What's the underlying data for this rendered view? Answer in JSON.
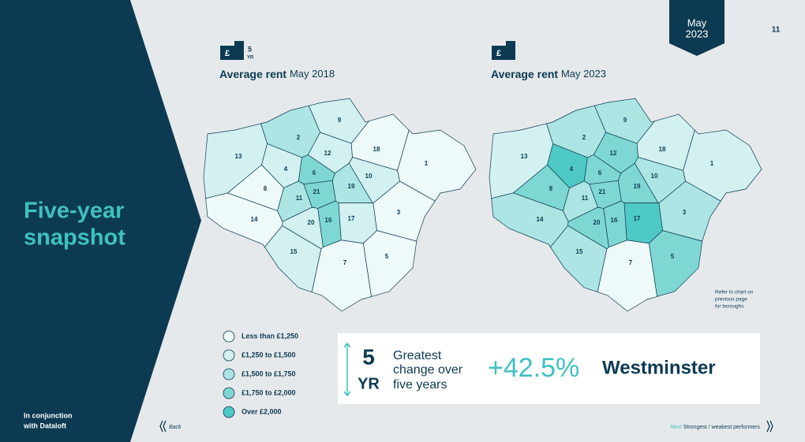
{
  "sidebar": {
    "title_lines": [
      "Five-year",
      "snapshot"
    ],
    "credit_lines": [
      "In conjunction",
      "with Dataloft"
    ]
  },
  "badge": {
    "month": "May",
    "year": "2023"
  },
  "page_number": "11",
  "maps": [
    {
      "icon_number": "5",
      "icon_unit": "YR",
      "title": "Average rent",
      "period": "May 2018",
      "boroughs": [
        {
          "label": "1",
          "level": 0
        },
        {
          "label": "2",
          "level": 2
        },
        {
          "label": "3",
          "level": 0
        },
        {
          "label": "4",
          "level": 1
        },
        {
          "label": "5",
          "level": 0
        },
        {
          "label": "6",
          "level": 3
        },
        {
          "label": "7",
          "level": 0
        },
        {
          "label": "8",
          "level": 0
        },
        {
          "label": "9",
          "level": 1
        },
        {
          "label": "10",
          "level": 1
        },
        {
          "label": "11",
          "level": 2
        },
        {
          "label": "12",
          "level": 1
        },
        {
          "label": "13",
          "level": 1
        },
        {
          "label": "14",
          "level": 0
        },
        {
          "label": "15",
          "level": 1
        },
        {
          "label": "16",
          "level": 3
        },
        {
          "label": "17",
          "level": 1
        },
        {
          "label": "18",
          "level": 0
        },
        {
          "label": "19",
          "level": 2
        },
        {
          "label": "20",
          "level": 1
        },
        {
          "label": "21",
          "level": 3
        }
      ]
    },
    {
      "title": "Average rent",
      "period": "May 2023",
      "boroughs": [
        {
          "label": "1",
          "level": 1
        },
        {
          "label": "2",
          "level": 2
        },
        {
          "label": "3",
          "level": 2
        },
        {
          "label": "4",
          "level": 4
        },
        {
          "label": "5",
          "level": 3
        },
        {
          "label": "6",
          "level": 3
        },
        {
          "label": "7",
          "level": 0
        },
        {
          "label": "8",
          "level": 3
        },
        {
          "label": "9",
          "level": 2
        },
        {
          "label": "10",
          "level": 2
        },
        {
          "label": "11",
          "level": 2
        },
        {
          "label": "12",
          "level": 3
        },
        {
          "label": "13",
          "level": 1
        },
        {
          "label": "14",
          "level": 2
        },
        {
          "label": "15",
          "level": 2
        },
        {
          "label": "16",
          "level": 3
        },
        {
          "label": "17",
          "level": 4
        },
        {
          "label": "18",
          "level": 1
        },
        {
          "label": "19",
          "level": 3
        },
        {
          "label": "20",
          "level": 3
        },
        {
          "label": "21",
          "level": 3
        }
      ]
    }
  ],
  "note_lines": [
    "Refer to chart on",
    "previous page",
    "for boroughs"
  ],
  "legend": [
    {
      "label": "Less than £1,250",
      "color": "#eef9f9"
    },
    {
      "label": "£1,250 to £1,500",
      "color": "#d2f1f0"
    },
    {
      "label": "£1,500 to £1,750",
      "color": "#ace5e3"
    },
    {
      "label": "£1,750 to £2,000",
      "color": "#7fd7d4"
    },
    {
      "label": "Over £2,000",
      "color": "#4fc9c5"
    }
  ],
  "highlight": {
    "number": "5",
    "unit": "YR",
    "caption_lines": [
      "Greatest",
      "change over",
      "five years"
    ],
    "change": "+42.5%",
    "borough": "Westminster"
  },
  "nav": {
    "back": "Back",
    "next_label": "Next",
    "next_title": "Strongest / weakest performers"
  }
}
